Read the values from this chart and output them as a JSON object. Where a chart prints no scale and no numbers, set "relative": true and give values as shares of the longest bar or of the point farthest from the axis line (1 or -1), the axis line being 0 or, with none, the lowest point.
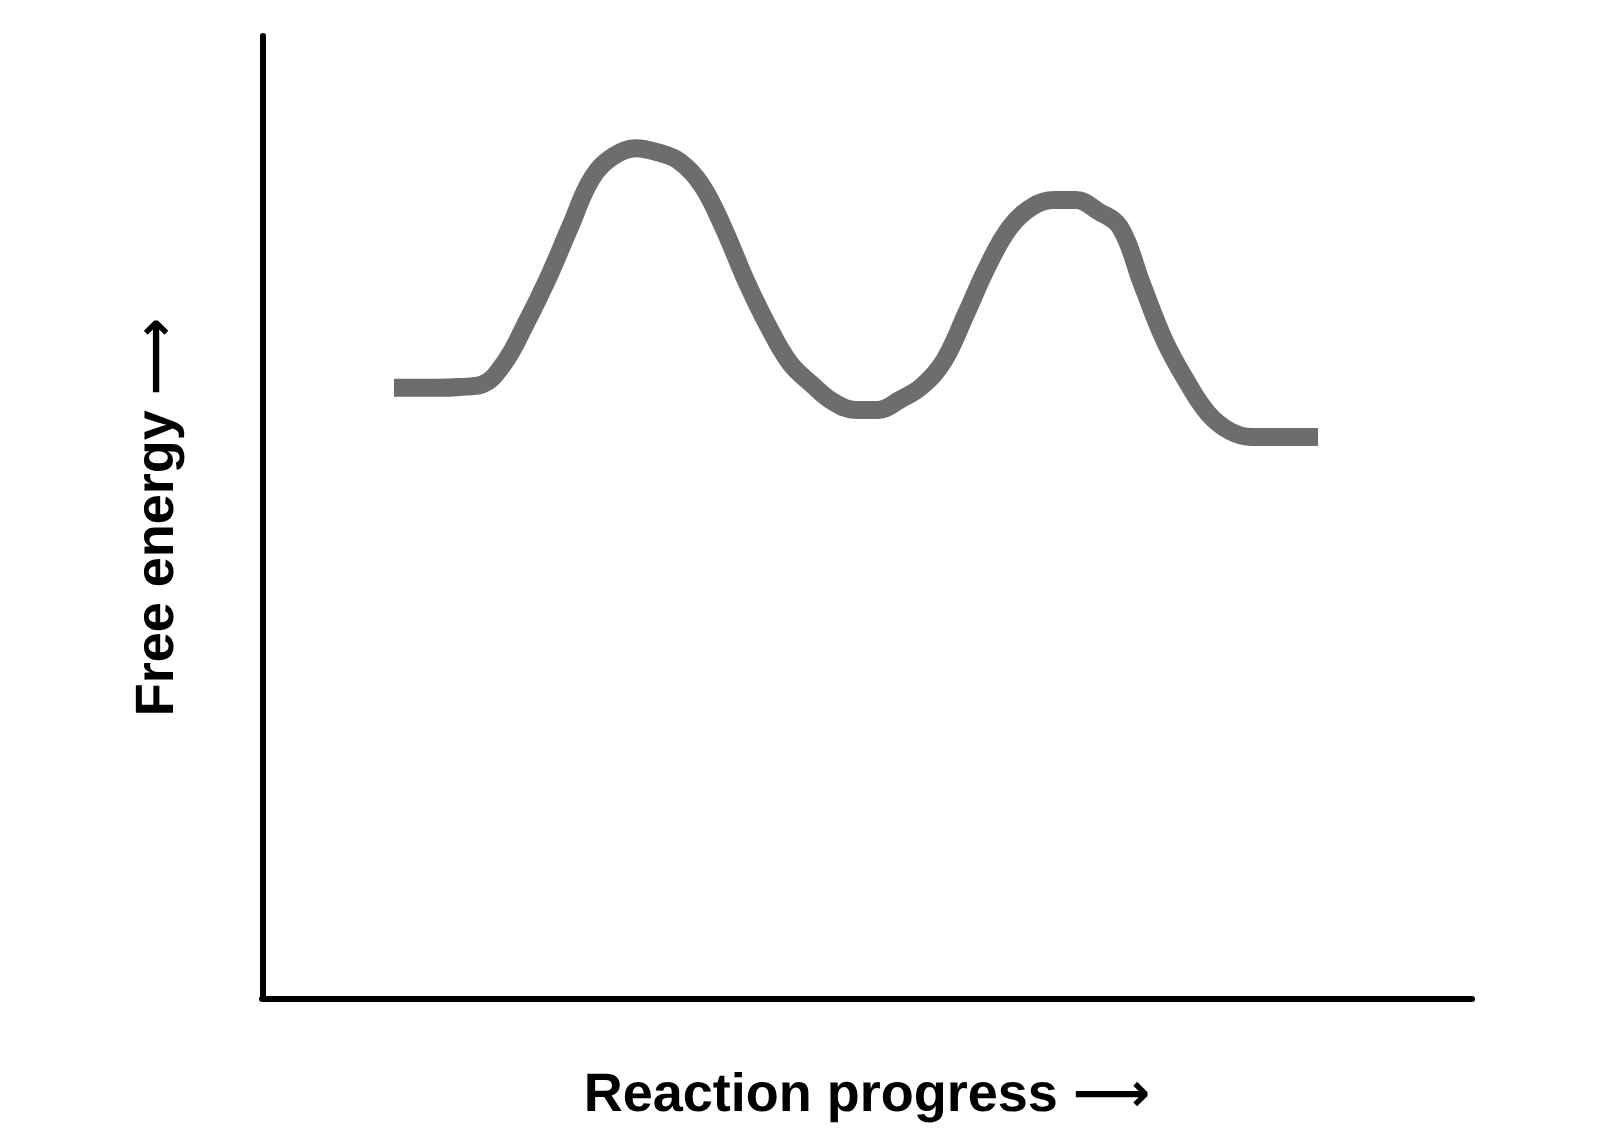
{
  "chart_data": {
    "type": "line",
    "xlabel": "Reaction progress ⟶",
    "ylabel": "Free energy ⟶",
    "relative": true,
    "categories": [
      null,
      null,
      null,
      null,
      null,
      null,
      null,
      null,
      null,
      null,
      null,
      null,
      null,
      null,
      null,
      null,
      null,
      null,
      null,
      null,
      null,
      null,
      null,
      null,
      null,
      null,
      null,
      null,
      null,
      null,
      null,
      null,
      null,
      null,
      null,
      null,
      null,
      null,
      null,
      null,
      null,
      null,
      null,
      null,
      null,
      null,
      null,
      null,
      null,
      null,
      null,
      null,
      null,
      null,
      null,
      null
    ],
    "series": [
      {
        "color": "#6d6d6d",
        "values": [
          null,
          null,
          null,
          null,
          null,
          null,
          0.718,
          0.718,
          0.718,
          0.719,
          0.722,
          0.747,
          0.794,
          0.847,
          0.907,
          0.965,
          0.991,
          1,
          0.995,
          0.984,
          0.956,
          0.905,
          0.844,
          0.791,
          0.747,
          0.722,
          0.701,
          0.692,
          0.692,
          0.704,
          0.72,
          0.75,
          0.805,
          0.862,
          0.907,
          0.931,
          0.939,
          0.939,
          0.926,
          0.907,
          0.84,
          0.775,
          0.727,
          0.688,
          0.667,
          0.66,
          0.66,
          0.66,
          0.66,
          null,
          null,
          null,
          null,
          null,
          null,
          null
        ]
      }
    ],
    "grid": false,
    "marker": "none",
    "line_style": "solid"
  }
}
